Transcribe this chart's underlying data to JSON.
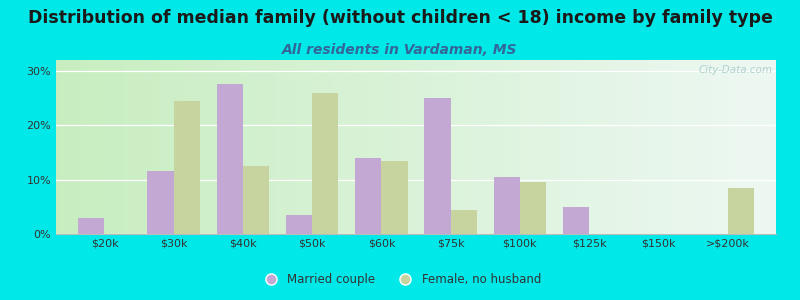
{
  "title": "Distribution of median family (without children < 18) income by family type",
  "subtitle": "All residents in Vardaman, MS",
  "categories": [
    "$20k",
    "$30k",
    "$40k",
    "$50k",
    "$60k",
    "$75k",
    "$100k",
    "$125k",
    "$150k",
    ">$200k"
  ],
  "married_couple": [
    3,
    11.5,
    27.5,
    3.5,
    14,
    25,
    10.5,
    5,
    0,
    0
  ],
  "female_no_husband": [
    0,
    24.5,
    12.5,
    26,
    13.5,
    4.5,
    9.5,
    0,
    0,
    8.5
  ],
  "married_color": "#c4a8d4",
  "female_color": "#c8d4a0",
  "bg_outer": "#00e8e8",
  "ylim": [
    0,
    32
  ],
  "yticks": [
    0,
    10,
    20,
    30
  ],
  "ytick_labels": [
    "0%",
    "10%",
    "20%",
    "30%"
  ],
  "title_fontsize": 12.5,
  "subtitle_fontsize": 10,
  "bar_width": 0.38,
  "legend_married": "Married couple",
  "legend_female": "Female, no husband",
  "title_color": "#1a1a1a",
  "subtitle_color": "#336699",
  "watermark_text": "City-Data.com",
  "watermark_color": "#aacccc"
}
